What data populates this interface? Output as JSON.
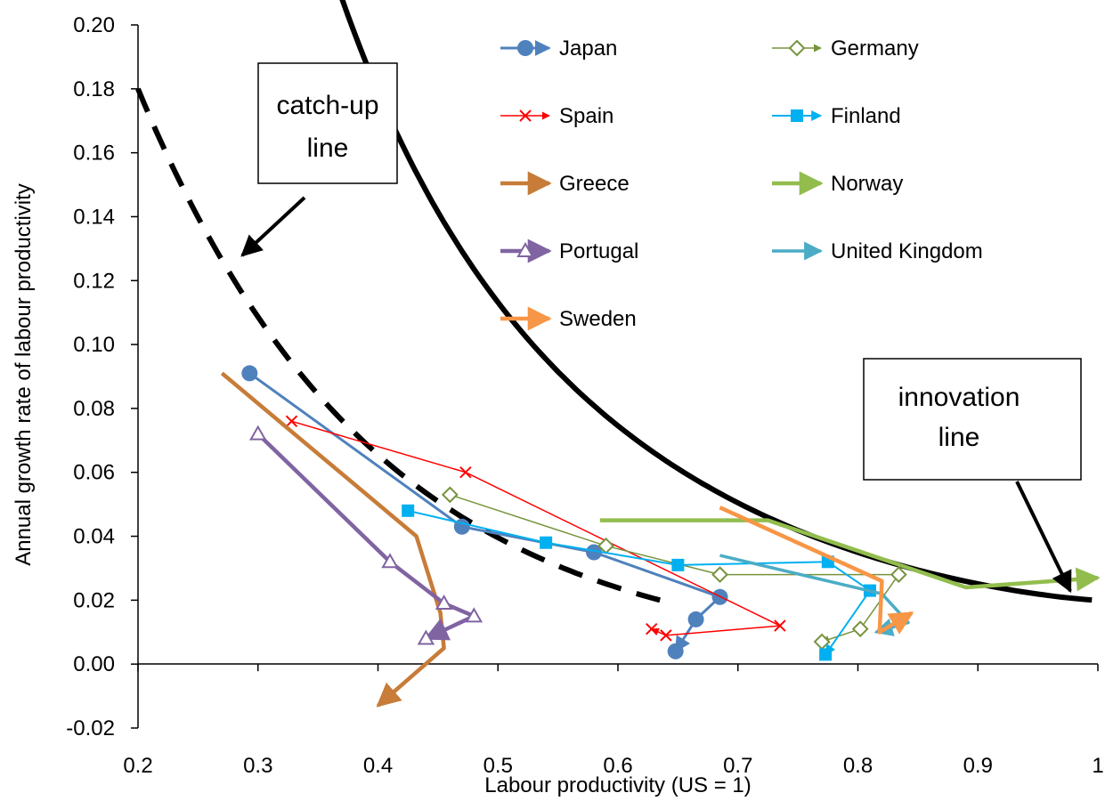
{
  "chart_data": {
    "type": "line",
    "xlabel": "Labour productivity (US = 1)",
    "ylabel": "Annual growth rate of labour productivity",
    "xlim": [
      0.2,
      1.0
    ],
    "ylim": [
      -0.02,
      0.2
    ],
    "x_ticks": [
      "0.2",
      "0.3",
      "0.4",
      "0.5",
      "0.6",
      "0.7",
      "0.8",
      "0.9",
      "1"
    ],
    "y_ticks": [
      "-0.02",
      "0.00",
      "0.02",
      "0.04",
      "0.06",
      "0.08",
      "0.10",
      "0.12",
      "0.14",
      "0.16",
      "0.18",
      "0.20"
    ],
    "grid": false,
    "legend_position": "top-center",
    "series": [
      {
        "name": "Japan",
        "color": "#4F81BD",
        "marker": "circle",
        "points": [
          [
            0.293,
            0.091
          ],
          [
            0.47,
            0.043
          ],
          [
            0.58,
            0.035
          ],
          [
            0.685,
            0.021
          ],
          [
            0.665,
            0.014
          ],
          [
            0.648,
            0.004
          ]
        ]
      },
      {
        "name": "Spain",
        "color": "#FF0000",
        "marker": "x",
        "points": [
          [
            0.328,
            0.076
          ],
          [
            0.473,
            0.06
          ],
          [
            0.735,
            0.012
          ],
          [
            0.64,
            0.009
          ],
          [
            0.628,
            0.011
          ]
        ]
      },
      {
        "name": "Greece",
        "color": "#C77C38",
        "marker": "none",
        "points": [
          [
            0.27,
            0.091
          ],
          [
            0.432,
            0.04
          ],
          [
            0.452,
            0.016
          ],
          [
            0.455,
            0.005
          ],
          [
            0.4,
            -0.013
          ]
        ]
      },
      {
        "name": "Portugal",
        "color": "#8064A2",
        "marker": "triangle",
        "points": [
          [
            0.3,
            0.072
          ],
          [
            0.41,
            0.032
          ],
          [
            0.455,
            0.019
          ],
          [
            0.48,
            0.015
          ],
          [
            0.44,
            0.008
          ]
        ]
      },
      {
        "name": "Germany",
        "color": "#77933C",
        "marker": "diamond",
        "points": [
          [
            0.46,
            0.053
          ],
          [
            0.59,
            0.037
          ],
          [
            0.685,
            0.028
          ],
          [
            0.834,
            0.028
          ],
          [
            0.802,
            0.011
          ],
          [
            0.77,
            0.007
          ]
        ]
      },
      {
        "name": "Finland",
        "color": "#00B0F0",
        "marker": "square",
        "points": [
          [
            0.425,
            0.048
          ],
          [
            0.54,
            0.038
          ],
          [
            0.65,
            0.031
          ],
          [
            0.775,
            0.032
          ],
          [
            0.81,
            0.023
          ],
          [
            0.773,
            0.003
          ]
        ]
      },
      {
        "name": "Norway",
        "color": "#92BD4E",
        "marker": "none",
        "points": [
          [
            0.585,
            0.045
          ],
          [
            0.725,
            0.045
          ],
          [
            0.89,
            0.024
          ],
          [
            1.0,
            0.027
          ]
        ]
      },
      {
        "name": "United Kingdom",
        "color": "#4BACC6",
        "marker": "none",
        "points": [
          [
            0.685,
            0.034
          ],
          [
            0.82,
            0.022
          ],
          [
            0.842,
            0.013
          ],
          [
            0.815,
            0.01
          ]
        ]
      },
      {
        "name": "Sweden",
        "color": "#F79646",
        "marker": "none",
        "points": [
          [
            0.685,
            0.049
          ],
          [
            0.82,
            0.026
          ],
          [
            0.818,
            0.01
          ],
          [
            0.845,
            0.016
          ]
        ]
      }
    ],
    "reference_lines": [
      {
        "name": "innovation",
        "color": "#000000",
        "style": "solid"
      },
      {
        "name": "catch-up",
        "color": "#000000",
        "style": "dashed"
      }
    ],
    "annotations": {
      "catch_up": [
        "catch-up",
        "line"
      ],
      "innovation": [
        "innovation",
        "line"
      ]
    }
  }
}
